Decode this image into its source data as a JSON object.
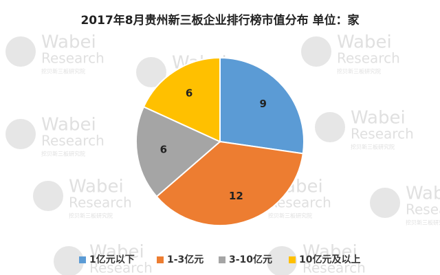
{
  "chart_data": {
    "type": "pie",
    "title": "2017年8月贵州新三板企业排行榜市值分布  单位：家",
    "categories": [
      "1亿元以下",
      "1-3亿元",
      "3-10亿元",
      "10亿元及以上"
    ],
    "values": [
      9,
      12,
      6,
      6
    ],
    "colors": [
      "#5b9bd5",
      "#ed7d31",
      "#a5a5a5",
      "#ffc000"
    ],
    "legend": "bottom",
    "watermark": {
      "brand": "Wabei",
      "sub": "Research",
      "cn": "挖贝新三板研究院"
    }
  }
}
